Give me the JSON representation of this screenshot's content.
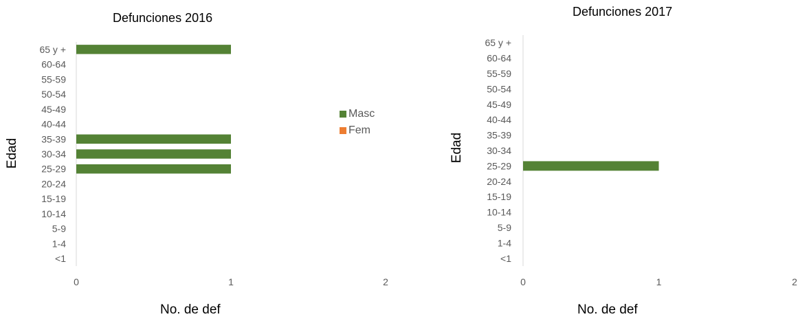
{
  "legend": {
    "items": [
      {
        "label": "Masc",
        "color": "#548235"
      },
      {
        "label": "Fem",
        "color": "#ED7D31"
      }
    ]
  },
  "chart_data": [
    {
      "type": "bar",
      "orientation": "horizontal",
      "title": "Defunciones 2016",
      "xlabel": "No. de def",
      "ylabel": "Edad",
      "categories": [
        "<1",
        "1-4",
        "5-9",
        "10-14",
        "15-19",
        "20-24",
        "25-29",
        "30-34",
        "35-39",
        "40-44",
        "45-49",
        "50-54",
        "55-59",
        "60-64",
        "65 y +"
      ],
      "xlim": [
        0,
        2
      ],
      "xticks": [
        "0",
        "1",
        "2"
      ],
      "series": [
        {
          "name": "Masc",
          "color": "#548235",
          "values": [
            0,
            0,
            0,
            0,
            0,
            0,
            1,
            1,
            1,
            0,
            0,
            0,
            0,
            0,
            1
          ]
        },
        {
          "name": "Fem",
          "color": "#ED7D31",
          "values": [
            0,
            0,
            0,
            0,
            0,
            0,
            0,
            0,
            0,
            0,
            0,
            0,
            0,
            0,
            0
          ]
        }
      ],
      "legend_position": "right",
      "grid": false
    },
    {
      "type": "bar",
      "orientation": "horizontal",
      "title": "Defunciones 2017",
      "xlabel": "No. de def",
      "ylabel": "Edad",
      "categories": [
        "<1",
        "1-4",
        "5-9",
        "10-14",
        "15-19",
        "20-24",
        "25-29",
        "30-34",
        "35-39",
        "40-44",
        "45-49",
        "50-54",
        "55-59",
        "60-64",
        "65 y +"
      ],
      "xlim": [
        0,
        2
      ],
      "xticks": [
        "0",
        "1",
        "2"
      ],
      "series": [
        {
          "name": "Masc",
          "color": "#548235",
          "values": [
            0,
            0,
            0,
            0,
            0,
            0,
            1,
            0,
            0,
            0,
            0,
            0,
            0,
            0,
            0
          ]
        },
        {
          "name": "Fem",
          "color": "#ED7D31",
          "values": [
            0,
            0,
            0,
            0,
            0,
            0,
            0,
            0,
            0,
            0,
            0,
            0,
            0,
            0,
            0
          ]
        }
      ],
      "grid": false
    }
  ]
}
